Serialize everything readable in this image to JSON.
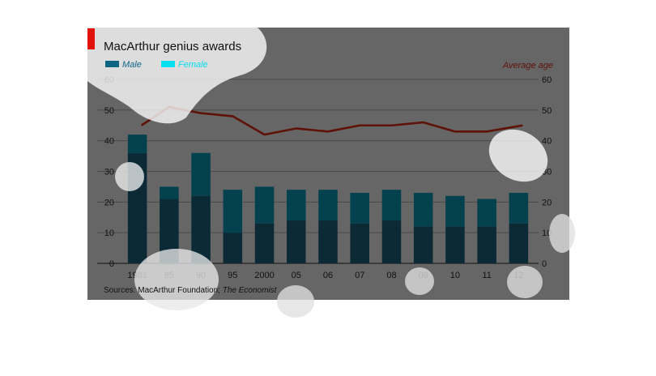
{
  "chart_data": {
    "type": "bar",
    "title": "MacArthur genius awards",
    "source_prefix": "Sources: MacArthur Foundation; ",
    "source_italic": "The Economist",
    "categories": [
      "1981",
      "85",
      "90",
      "95",
      "2000",
      "05",
      "06",
      "07",
      "08",
      "09",
      "10",
      "11",
      "12"
    ],
    "stacked": true,
    "series": [
      {
        "name": "Male",
        "color": "#0d6584",
        "values": [
          36,
          21,
          22,
          10,
          13,
          14,
          14,
          13,
          14,
          12,
          12,
          12,
          13
        ]
      },
      {
        "name": "Female",
        "color": "#00dff0",
        "values": [
          6,
          4,
          14,
          14,
          12,
          10,
          10,
          10,
          10,
          11,
          10,
          9,
          10
        ]
      }
    ],
    "line_series": {
      "name": "Average age",
      "color": "#5e1208",
      "values": [
        45,
        51,
        49,
        48,
        42,
        44,
        43,
        45,
        45,
        46,
        43,
        43,
        45
      ]
    },
    "ylim": [
      0,
      60
    ],
    "yticks": [
      0,
      10,
      20,
      30,
      40,
      50,
      60
    ],
    "grid": true,
    "legend_position": "top-left"
  }
}
